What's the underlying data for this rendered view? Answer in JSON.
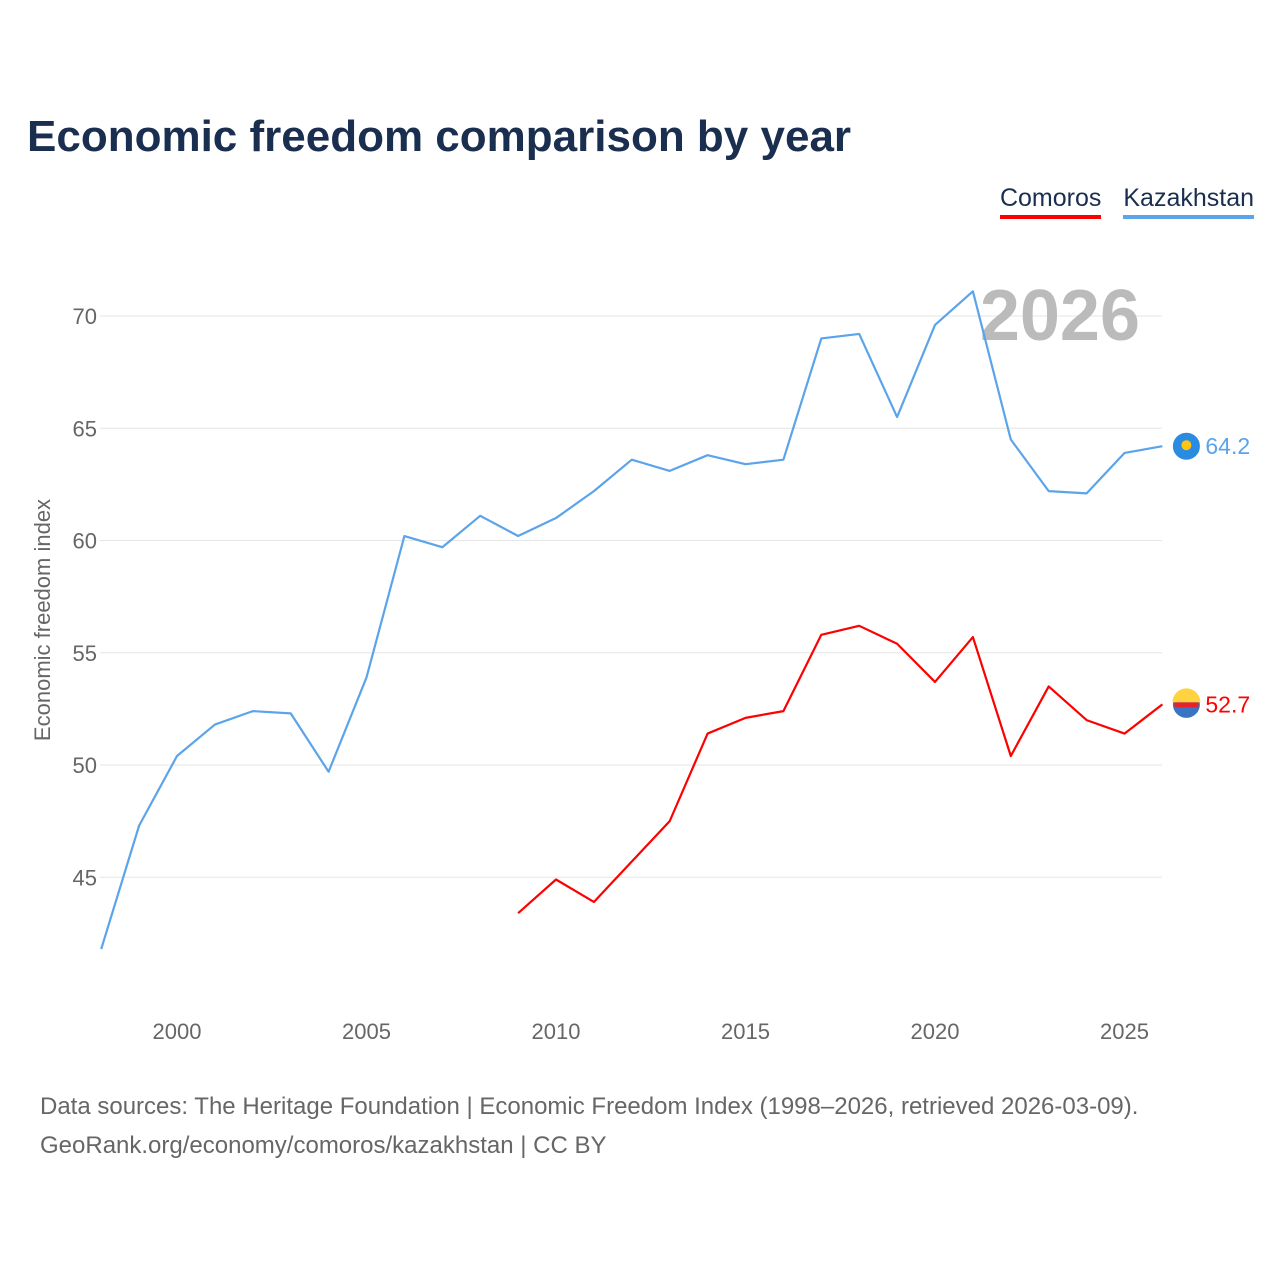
{
  "title": "Economic freedom comparison by year",
  "legend": [
    {
      "label": "Comoros",
      "color": "#ff0000"
    },
    {
      "label": "Kazakhstan",
      "color": "#5ba4ea"
    }
  ],
  "year_watermark": "2026",
  "footer": {
    "line1": "Data sources: The Heritage Foundation | Economic Freedom Index (1998–2026, retrieved 2026-03-09).",
    "line2": "GeoRank.org/economy/comoros/kazakhstan | CC BY"
  },
  "chart_data": {
    "type": "line",
    "title": "Economic freedom comparison by year",
    "xlabel": "",
    "ylabel": "Economic freedom index",
    "xlim": [
      1998,
      2026
    ],
    "ylim": [
      39.5,
      73
    ],
    "grid": true,
    "legend_position": "top-right",
    "x_ticks": [
      2000,
      2005,
      2010,
      2015,
      2020,
      2025
    ],
    "y_ticks": [
      45,
      50,
      55,
      60,
      65,
      70
    ],
    "series": [
      {
        "name": "Kazakhstan",
        "color": "#5ba4ea",
        "end_label": "64.2",
        "x": [
          1998,
          1999,
          2000,
          2001,
          2002,
          2003,
          2004,
          2005,
          2006,
          2007,
          2008,
          2009,
          2010,
          2011,
          2012,
          2013,
          2014,
          2015,
          2016,
          2017,
          2018,
          2019,
          2020,
          2021,
          2022,
          2023,
          2024,
          2025,
          2026
        ],
        "values": [
          41.8,
          47.3,
          50.4,
          51.8,
          52.4,
          52.3,
          49.7,
          53.9,
          60.2,
          59.7,
          61.1,
          60.2,
          61.0,
          62.2,
          63.6,
          63.1,
          63.8,
          63.4,
          63.6,
          69.0,
          69.2,
          65.5,
          69.6,
          71.1,
          64.5,
          62.2,
          62.1,
          63.9,
          64.2
        ]
      },
      {
        "name": "Comoros",
        "color": "#ff0000",
        "end_label": "52.7",
        "x": [
          2009,
          2010,
          2011,
          2012,
          2013,
          2014,
          2015,
          2016,
          2017,
          2018,
          2019,
          2020,
          2021,
          2022,
          2023,
          2024,
          2025,
          2026
        ],
        "values": [
          43.4,
          44.9,
          43.9,
          45.7,
          47.5,
          51.4,
          52.1,
          52.4,
          55.8,
          56.2,
          55.4,
          53.7,
          55.7,
          50.4,
          53.5,
          52.0,
          51.4,
          52.7
        ]
      }
    ]
  }
}
